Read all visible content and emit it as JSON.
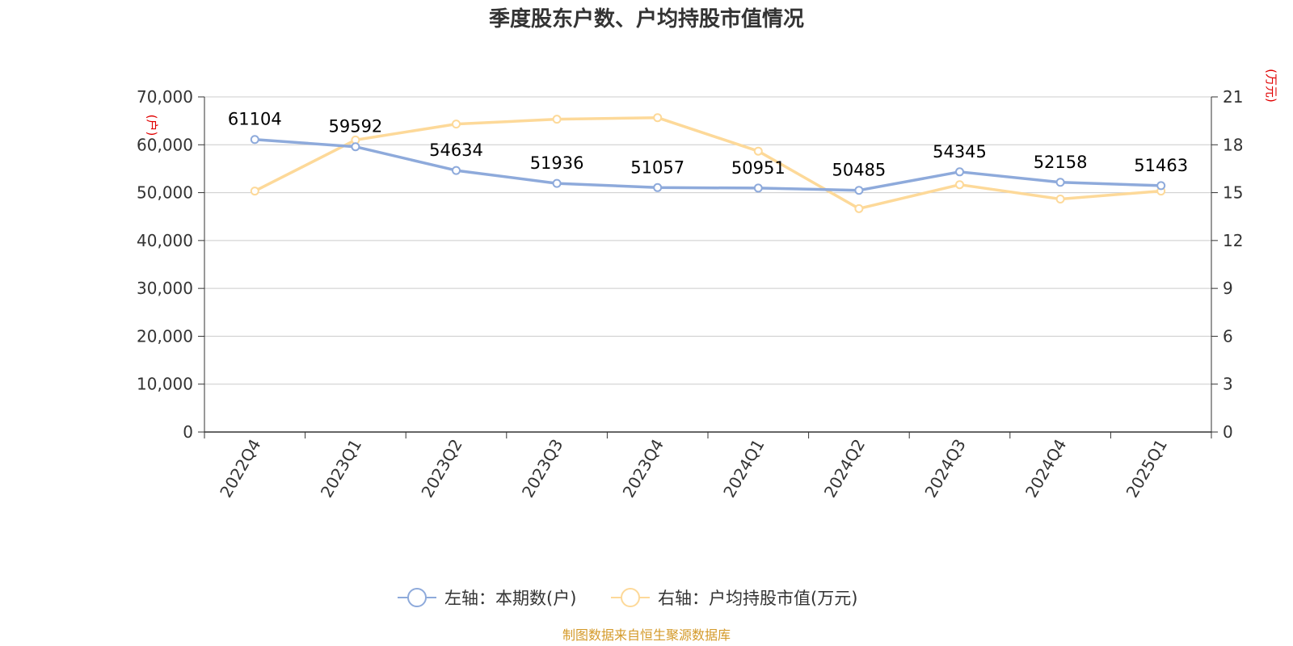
{
  "colors": {
    "left_series": "#8eaadb",
    "right_series": "#fdd999",
    "unit_label": "#e00000",
    "source": "#d49a2a",
    "grid": "#cccccc",
    "axis": "#333333"
  },
  "chart_data": {
    "type": "line",
    "title": "季度股东户数、户均持股市值情况",
    "categories": [
      "2022Q4",
      "2023Q1",
      "2023Q2",
      "2023Q3",
      "2023Q4",
      "2024Q1",
      "2024Q2",
      "2024Q3",
      "2024Q4",
      "2025Q1"
    ],
    "left_axis": {
      "unit": "(户)",
      "range": [
        0,
        70000
      ],
      "ticks": [
        "0",
        "10,000",
        "20,000",
        "30,000",
        "40,000",
        "50,000",
        "60,000",
        "70,000"
      ]
    },
    "right_axis": {
      "unit": "(万元)",
      "range": [
        0,
        21
      ],
      "ticks": [
        "0",
        "3",
        "6",
        "9",
        "12",
        "15",
        "18",
        "21"
      ]
    },
    "series": [
      {
        "name": "左轴：本期数(户)",
        "axis": "left",
        "values": [
          61104,
          59592,
          54634,
          51936,
          51057,
          50951,
          50485,
          54345,
          52158,
          51463
        ],
        "labels": [
          "61104",
          "59592",
          "54634",
          "51936",
          "51057",
          "50951",
          "50485",
          "54345",
          "52158",
          "51463"
        ]
      },
      {
        "name": "右轴：户均持股市值(万元)",
        "axis": "right",
        "values": [
          15.1,
          18.3,
          19.3,
          19.6,
          19.7,
          17.6,
          14.0,
          15.5,
          14.6,
          15.1
        ]
      }
    ],
    "grid": true,
    "legend_position": "bottom"
  },
  "source_text": "制图数据来自恒生聚源数据库"
}
